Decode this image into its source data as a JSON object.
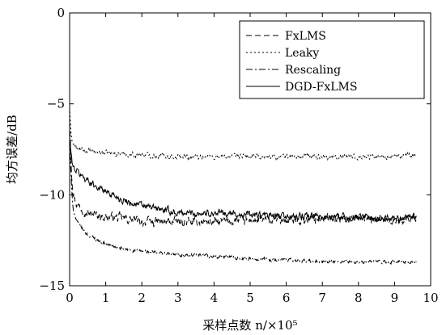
{
  "chart_data": {
    "type": "line",
    "title": "",
    "xlabel": "采样点数 n/×10⁵",
    "ylabel": "均方误差/dB",
    "xlim": [
      0,
      10
    ],
    "ylim": [
      -15,
      0
    ],
    "xticks": [
      0,
      1,
      2,
      3,
      4,
      5,
      6,
      7,
      8,
      9,
      10
    ],
    "yticks": [
      -15,
      -10,
      -5,
      0
    ],
    "x_tick_labels": [
      "0",
      "1",
      "2",
      "3",
      "4",
      "5",
      "6",
      "7",
      "8",
      "9",
      "10"
    ],
    "y_tick_labels": [
      "−15",
      "−10",
      "−5",
      "0"
    ],
    "grid": false,
    "legend_position": "top-right",
    "x_end": 9.6,
    "series": [
      {
        "name": "FxLMS",
        "dash": "dashed",
        "color": "#000000",
        "x": [
          0,
          0.05,
          0.1,
          0.2,
          0.5,
          1,
          1.5,
          2,
          3,
          4,
          5,
          6,
          7,
          8,
          9,
          9.6
        ],
        "values": [
          -6.0,
          -8.5,
          -10.0,
          -10.5,
          -11.0,
          -11.2,
          -11.3,
          -11.5,
          -11.5,
          -11.5,
          -11.4,
          -11.4,
          -11.3,
          -11.2,
          -11.4,
          -11.2
        ]
      },
      {
        "name": "Leaky",
        "dash": "dotted",
        "color": "#000000",
        "x": [
          0,
          0.02,
          0.05,
          0.1,
          0.2,
          0.5,
          1,
          2,
          3,
          4,
          5,
          6,
          7,
          8,
          9,
          9.6
        ],
        "values": [
          -5.2,
          -6.0,
          -6.8,
          -7.2,
          -7.5,
          -7.6,
          -7.7,
          -7.8,
          -7.9,
          -7.9,
          -7.9,
          -7.9,
          -7.9,
          -7.9,
          -7.9,
          -7.8
        ]
      },
      {
        "name": "Rescaling",
        "dash": "dashdot",
        "color": "#000000",
        "x": [
          0,
          0.05,
          0.1,
          0.2,
          0.5,
          1,
          1.5,
          2,
          3,
          4,
          5,
          6,
          7,
          8,
          9,
          9.6
        ],
        "values": [
          -7.0,
          -9.5,
          -10.8,
          -11.5,
          -12.2,
          -12.7,
          -13.0,
          -13.1,
          -13.3,
          -13.4,
          -13.5,
          -13.6,
          -13.7,
          -13.7,
          -13.7,
          -13.7
        ]
      },
      {
        "name": "DGD-FxLMS",
        "dash": "solid",
        "color": "#000000",
        "x": [
          0,
          0.05,
          0.1,
          0.3,
          0.5,
          0.8,
          1,
          1.5,
          2,
          2.5,
          3,
          4,
          5,
          6,
          7,
          8,
          9,
          9.6
        ],
        "values": [
          -6.8,
          -8.0,
          -8.5,
          -8.9,
          -9.2,
          -9.6,
          -9.8,
          -10.3,
          -10.6,
          -10.8,
          -11.0,
          -11.0,
          -11.1,
          -11.2,
          -11.2,
          -11.3,
          -11.3,
          -11.2
        ]
      }
    ]
  }
}
